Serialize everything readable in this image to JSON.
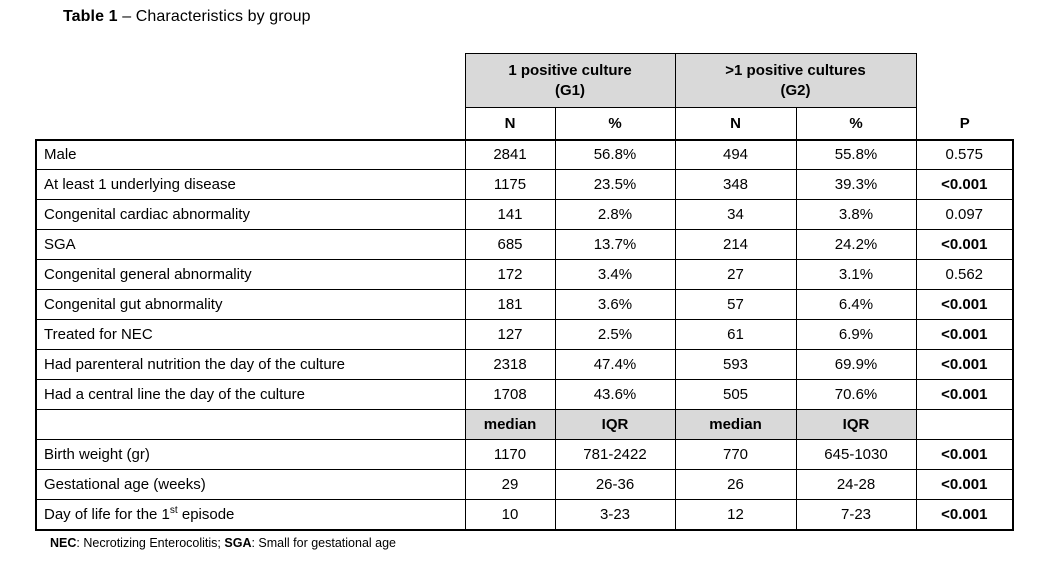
{
  "title": {
    "bold": "Table 1",
    "rest": " – Characteristics by group"
  },
  "table": {
    "colors": {
      "header_fill": "#d9d9d9",
      "border": "#000000"
    },
    "group_headers": [
      {
        "title": "1 positive culture",
        "subtitle": "(G1)"
      },
      {
        "title": ">1 positive cultures",
        "subtitle": "(G2)"
      }
    ],
    "measure_headers": [
      "N",
      "%",
      "N",
      "%"
    ],
    "p_header": "P",
    "count_rows": [
      {
        "label": "Male",
        "values": [
          "2841",
          "56.8%",
          "494",
          "55.8%"
        ],
        "p": "0.575",
        "significant": false
      },
      {
        "label": "At least 1 underlying disease",
        "values": [
          "1175",
          "23.5%",
          "348",
          "39.3%"
        ],
        "p": "<0.001",
        "significant": true
      },
      {
        "label": "Congenital cardiac abnormality",
        "values": [
          "141",
          "2.8%",
          "34",
          "3.8%"
        ],
        "p": "0.097",
        "significant": false
      },
      {
        "label": "SGA",
        "values": [
          "685",
          "13.7%",
          "214",
          "24.2%"
        ],
        "p": "<0.001",
        "significant": true
      },
      {
        "label": "Congenital general abnormality",
        "values": [
          "172",
          "3.4%",
          "27",
          "3.1%"
        ],
        "p": "0.562",
        "significant": false
      },
      {
        "label": "Congenital gut abnormality",
        "values": [
          "181",
          "3.6%",
          "57",
          "6.4%"
        ],
        "p": "<0.001",
        "significant": true
      },
      {
        "label": "Treated for NEC",
        "values": [
          "127",
          "2.5%",
          "61",
          "6.9%"
        ],
        "p": "<0.001",
        "significant": true
      },
      {
        "label": "Had parenteral nutrition the day of the culture",
        "values": [
          "2318",
          "47.4%",
          "593",
          "69.9%"
        ],
        "p": "<0.001",
        "significant": true
      },
      {
        "label": "Had a central line the day of the culture",
        "values": [
          "1708",
          "43.6%",
          "505",
          "70.6%"
        ],
        "p": "<0.001",
        "significant": true
      }
    ],
    "stat_headers": [
      "median",
      "IQR",
      "median",
      "IQR"
    ],
    "stat_rows": [
      {
        "label": "Birth weight (gr)",
        "values": [
          "1170",
          "781-2422",
          "770",
          "645-1030"
        ],
        "p": "<0.001",
        "significant": true
      },
      {
        "label": "Gestational age (weeks)",
        "values": [
          "29",
          "26-36",
          "26",
          "24-28"
        ],
        "p": "<0.001",
        "significant": true
      },
      {
        "label": [
          {
            "t": "Day of life for the 1"
          },
          {
            "t": "st",
            "sup": true
          },
          {
            "t": " episode"
          }
        ],
        "values": [
          "10",
          "3-23",
          "12",
          "7-23"
        ],
        "p": "<0.001",
        "significant": true
      }
    ],
    "footnote": [
      {
        "t": "NEC",
        "bold": true
      },
      {
        "t": ": Necrotizing Enterocolitis; "
      },
      {
        "t": "SGA",
        "bold": true
      },
      {
        "t": ": Small for gestational age"
      }
    ]
  }
}
